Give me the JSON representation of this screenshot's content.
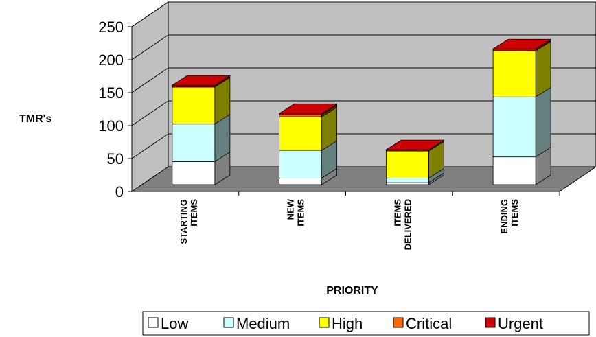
{
  "chart_data": {
    "type": "bar",
    "stacked": true,
    "three_d": true,
    "title": "",
    "xlabel": "PRIORITY",
    "ylabel": "TMR's",
    "ylim": [
      0,
      250
    ],
    "yticks": [
      0,
      50,
      100,
      150,
      200,
      250
    ],
    "grid": true,
    "legend_position": "bottom-right",
    "categories": [
      [
        "STARTING",
        "ITEMS"
      ],
      [
        "NEW",
        "ITEMS"
      ],
      [
        "ITEMS",
        "DELIVERED"
      ],
      [
        "ENDING",
        "ITEMS"
      ]
    ],
    "series": [
      {
        "name": "Low",
        "color": "#ffffff",
        "values": [
          35,
          10,
          3,
          42
        ]
      },
      {
        "name": "Medium",
        "color": "#ccffff",
        "values": [
          57,
          42,
          7,
          91
        ]
      },
      {
        "name": "High",
        "color": "#ffff00",
        "values": [
          56,
          51,
          41,
          70
        ]
      },
      {
        "name": "Critical",
        "color": "#ff6600",
        "values": [
          0,
          3,
          0,
          0
        ]
      },
      {
        "name": "Urgent",
        "color": "#cc0000",
        "values": [
          3,
          2,
          2,
          3
        ]
      }
    ]
  }
}
